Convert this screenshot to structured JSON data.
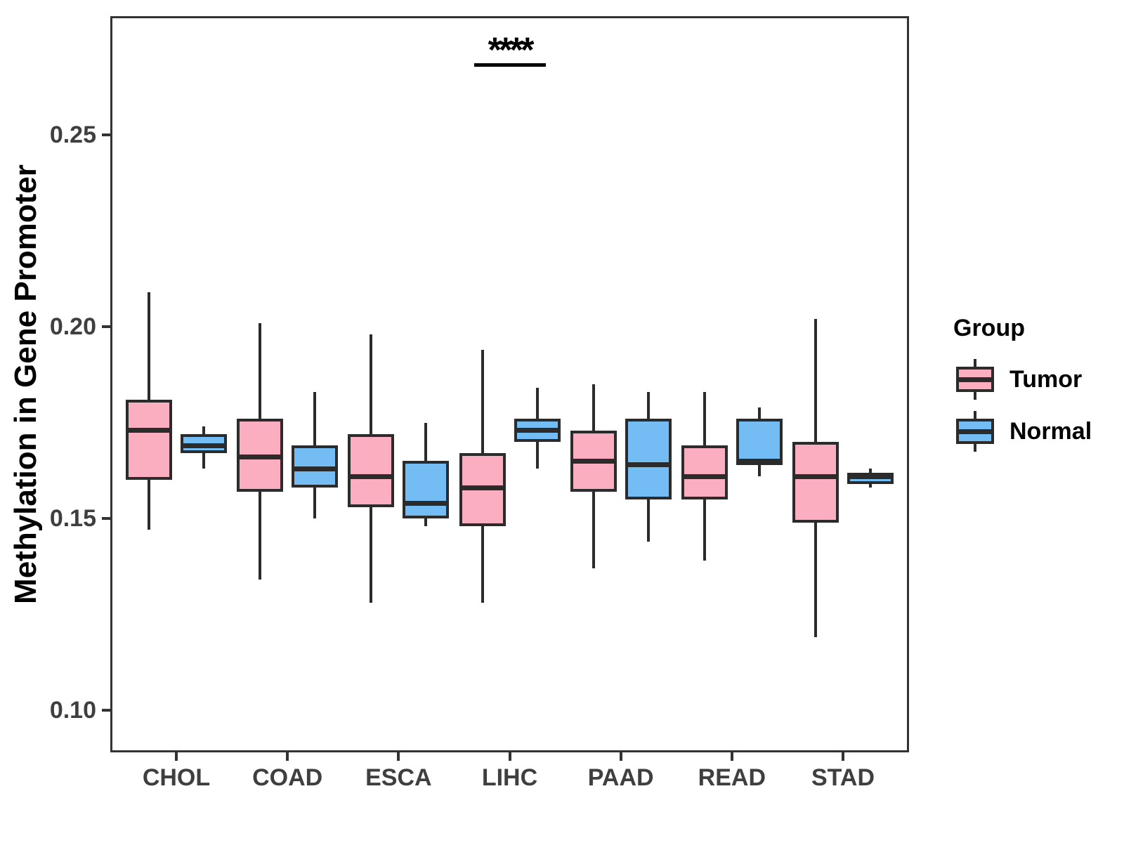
{
  "figure": {
    "background": "#FFFFFF"
  },
  "colors": {
    "tumor": "#FAAEC0",
    "normal": "#73BDF4",
    "stroke": "#2B2B2B",
    "panel_border": "#333333",
    "axis_text": "#3F3F3F",
    "title_text": "#000000"
  },
  "y_axis": {
    "label": "Methylation in Gene Promoter",
    "tick_labels": [
      "0.25",
      "0.20",
      "0.15",
      "0.10"
    ]
  },
  "x_axis": {
    "label": "",
    "tick_labels": [
      "CHOL",
      "COAD",
      "ESCA",
      "LIHC",
      "PAAD",
      "READ",
      "STAD"
    ]
  },
  "legend": {
    "title": "Group",
    "entries": [
      {
        "label": "Tumor",
        "color": "#FAAEC0"
      },
      {
        "label": "Normal",
        "color": "#73BDF4"
      }
    ]
  },
  "chart_data": {
    "type": "boxplot",
    "title": "",
    "xlabel": "",
    "ylabel": "Methylation in Gene Promoter",
    "categories": [
      "CHOL",
      "COAD",
      "ESCA",
      "LIHC",
      "PAAD",
      "READ",
      "STAD"
    ],
    "ylim": [
      0.089,
      0.281
    ],
    "yticks": [
      0.25,
      0.2,
      0.15,
      0.1
    ],
    "ytick_labels": [
      "0.25",
      "0.20",
      "0.15",
      "0.10"
    ],
    "grid": false,
    "legend_position": "right",
    "legend_title": "Group",
    "series": [
      {
        "name": "Tumor",
        "color": "#FAAEC0",
        "boxes": [
          {
            "category": "CHOL",
            "min": 0.147,
            "q1": 0.16,
            "median": 0.173,
            "q3": 0.181,
            "max": 0.209
          },
          {
            "category": "COAD",
            "min": 0.134,
            "q1": 0.157,
            "median": 0.166,
            "q3": 0.176,
            "max": 0.201
          },
          {
            "category": "ESCA",
            "min": 0.128,
            "q1": 0.153,
            "median": 0.161,
            "q3": 0.172,
            "max": 0.198
          },
          {
            "category": "LIHC",
            "min": 0.128,
            "q1": 0.148,
            "median": 0.158,
            "q3": 0.167,
            "max": 0.194
          },
          {
            "category": "PAAD",
            "min": 0.137,
            "q1": 0.157,
            "median": 0.165,
            "q3": 0.173,
            "max": 0.185
          },
          {
            "category": "READ",
            "min": 0.139,
            "q1": 0.155,
            "median": 0.161,
            "q3": 0.169,
            "max": 0.183
          },
          {
            "category": "STAD",
            "min": 0.119,
            "q1": 0.149,
            "median": 0.161,
            "q3": 0.17,
            "max": 0.202
          }
        ]
      },
      {
        "name": "Normal",
        "color": "#73BDF4",
        "boxes": [
          {
            "category": "CHOL",
            "min": 0.163,
            "q1": 0.167,
            "median": 0.169,
            "q3": 0.172,
            "max": 0.174
          },
          {
            "category": "COAD",
            "min": 0.15,
            "q1": 0.158,
            "median": 0.163,
            "q3": 0.169,
            "max": 0.183
          },
          {
            "category": "ESCA",
            "min": 0.148,
            "q1": 0.15,
            "median": 0.154,
            "q3": 0.165,
            "max": 0.175
          },
          {
            "category": "LIHC",
            "min": 0.163,
            "q1": 0.17,
            "median": 0.173,
            "q3": 0.176,
            "max": 0.184
          },
          {
            "category": "PAAD",
            "min": 0.144,
            "q1": 0.155,
            "median": 0.164,
            "q3": 0.176,
            "max": 0.183
          },
          {
            "category": "READ",
            "min": 0.161,
            "q1": 0.164,
            "median": 0.165,
            "q3": 0.176,
            "max": 0.179
          },
          {
            "category": "STAD",
            "min": 0.158,
            "q1": 0.159,
            "median": 0.161,
            "q3": 0.162,
            "max": 0.163
          }
        ]
      }
    ],
    "significance": {
      "category": "LIHC",
      "label": "****"
    }
  }
}
